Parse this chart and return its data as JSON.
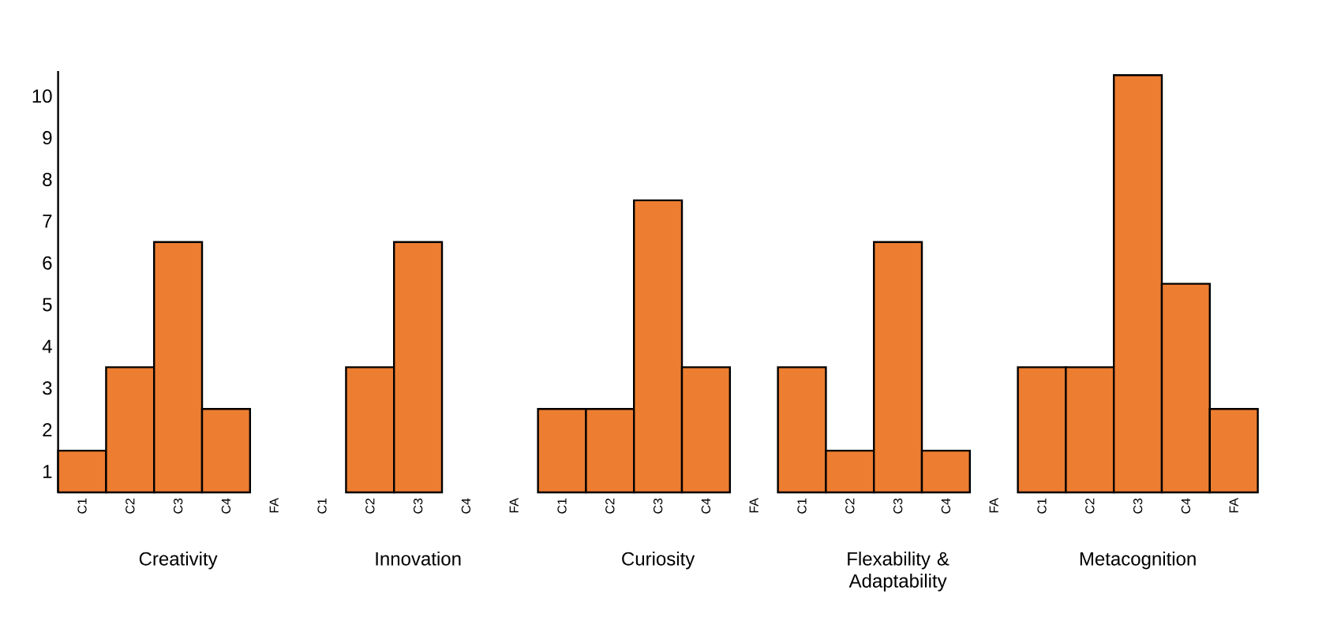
{
  "chart_data": {
    "type": "bar",
    "categories": [
      "C1",
      "C2",
      "C3",
      "C4",
      "FA",
      "C1",
      "C2",
      "C3",
      "C4",
      "FA",
      "C1",
      "C2",
      "C3",
      "C4",
      "FA",
      "C1",
      "C2",
      "C3",
      "C4",
      "FA",
      "C1",
      "C2",
      "C3",
      "C4",
      "FA"
    ],
    "values": [
      1.5,
      3.5,
      6.5,
      2.5,
      null,
      null,
      3.5,
      6.5,
      null,
      null,
      2.5,
      2.5,
      7.5,
      3.5,
      null,
      3.5,
      1.5,
      6.5,
      1.5,
      null,
      3.5,
      3.5,
      10.5,
      5.5,
      2.5
    ],
    "color": "#ed7d31",
    "ylim": [
      0.5,
      10.6
    ],
    "yticks": [
      1,
      2,
      3,
      4,
      5,
      6,
      7,
      8,
      9,
      10
    ],
    "annotations": [
      "Creativity",
      "Innovation",
      "Curiosity",
      "Flexability & Adaptability",
      "Metacognition"
    ]
  }
}
